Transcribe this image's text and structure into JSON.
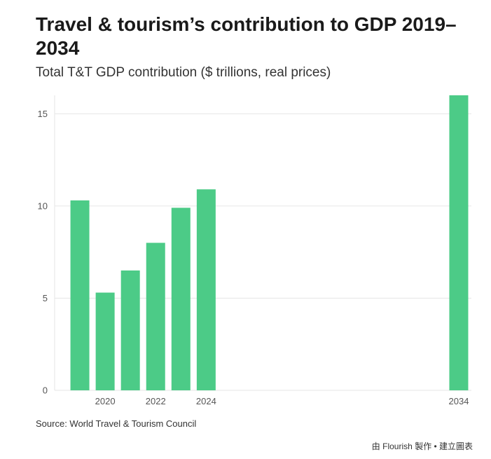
{
  "header": {
    "title": "Travel & tourism’s contribution to GDP 2019–2034",
    "subtitle": "Total T&T GDP contribution ($ trillions, real prices)"
  },
  "footer": {
    "source": "Source: World Travel & Tourism Council",
    "credit": "由 Flourish 製作 • 建立圖表"
  },
  "colors": {
    "bar": "#4ccb87",
    "grid": "#e6e6e6",
    "axis": "#cccccc"
  },
  "chart_data": {
    "type": "bar",
    "title": "Travel & tourism’s contribution to GDP 2019–2034",
    "subtitle": "Total T&T GDP contribution ($ trillions, real prices)",
    "xlabel": "",
    "ylabel": "",
    "x": [
      2019,
      2020,
      2021,
      2022,
      2023,
      2024,
      2034
    ],
    "values": [
      10.3,
      5.3,
      6.5,
      8.0,
      9.9,
      10.9,
      16.0
    ],
    "xlim": [
      2018,
      2034.5
    ],
    "ylim": [
      0,
      16
    ],
    "yticks": [
      0,
      5,
      10,
      15
    ],
    "xticks": [
      2020,
      2022,
      2024,
      2034
    ],
    "grid": true,
    "legend": "none"
  }
}
